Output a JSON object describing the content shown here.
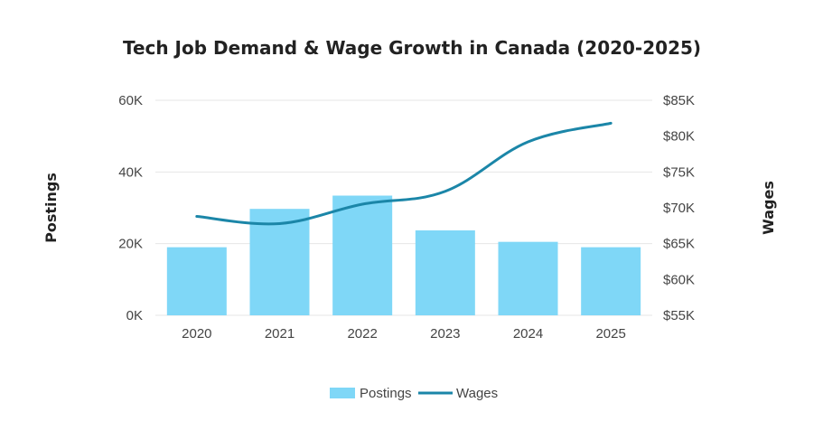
{
  "chart_data": {
    "type": "bar",
    "title": "Tech Job Demand & Wage Growth in Canada (2020-2025)",
    "categories": [
      "2020",
      "2021",
      "2022",
      "2023",
      "2024",
      "2025"
    ],
    "series": [
      {
        "name": "Postings",
        "type": "bar",
        "axis": "left",
        "values": [
          19000,
          29700,
          33400,
          23700,
          20500,
          19000
        ]
      },
      {
        "name": "Wages",
        "type": "line",
        "axis": "right",
        "values": [
          68800,
          67800,
          70500,
          72300,
          79200,
          81800
        ]
      }
    ],
    "y_left": {
      "label": "Postings",
      "range": [
        0,
        60000
      ],
      "ticks": [
        0,
        20000,
        40000,
        60000
      ],
      "tick_labels": [
        "0K",
        "20K",
        "40K",
        "60K"
      ]
    },
    "y_right": {
      "label": "Wages",
      "range": [
        55000,
        85000
      ],
      "ticks": [
        55000,
        60000,
        65000,
        70000,
        75000,
        80000,
        85000
      ],
      "tick_labels": [
        "$55K",
        "$60K",
        "$65K",
        "$70K",
        "$75K",
        "$80K",
        "$85K"
      ]
    },
    "grid": true,
    "legend": "bottom-center",
    "colors": {
      "bars": "#7fd7f7",
      "line": "#1b86a8",
      "grid": "#e6e6e6",
      "text": "#444444"
    }
  }
}
